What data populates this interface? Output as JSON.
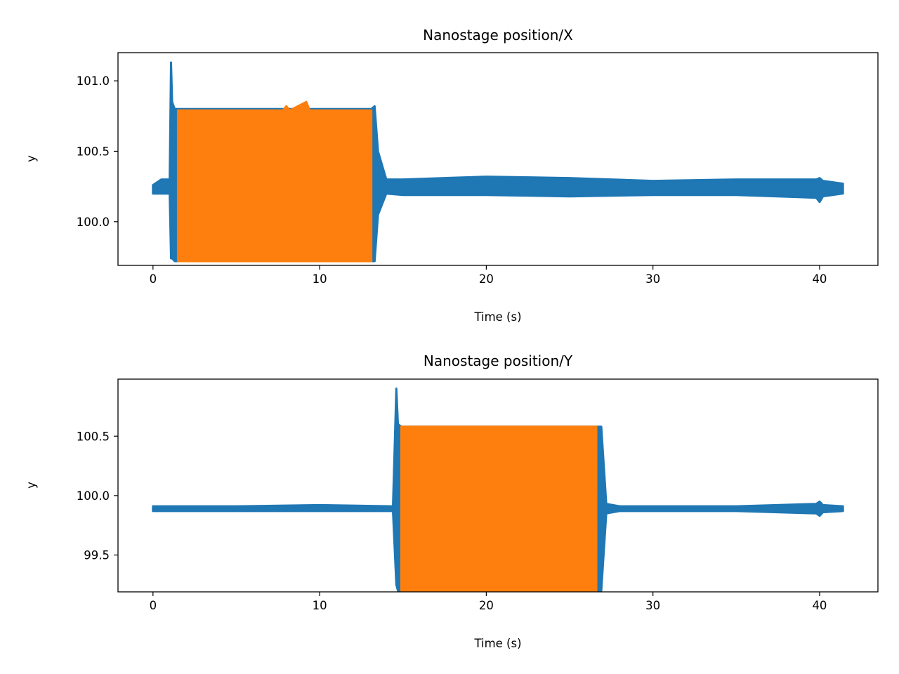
{
  "chart_data": [
    {
      "type": "line",
      "title": "Nanostage position/X",
      "xlabel": "Time (s)",
      "ylabel": "y",
      "xlim": [
        -2.1,
        43.5
      ],
      "ylim": [
        99.69,
        101.2
      ],
      "xticks": [
        0,
        10,
        20,
        30,
        40
      ],
      "xtick_labels": [
        "0",
        "10",
        "20",
        "30",
        "40"
      ],
      "yticks": [
        100.0,
        100.5,
        101.0
      ],
      "ytick_labels": [
        "100.0",
        "100.5",
        "101.0"
      ],
      "grid": false,
      "colors": {
        "series_1": "#1f77b4",
        "series_2": "#ff7f0e"
      },
      "series": [
        {
          "color": "#1f77b4",
          "x": [
            0,
            0.5,
            1.0,
            1.08,
            1.15,
            1.3,
            1.5,
            13.1,
            13.3,
            13.5,
            14.0,
            15,
            20,
            25,
            30,
            35,
            39.8,
            40.0,
            40.2,
            41.4
          ],
          "y_min": [
            100.2,
            100.2,
            100.2,
            99.74,
            99.74,
            99.72,
            99.72,
            99.72,
            99.72,
            100.05,
            100.2,
            100.19,
            100.19,
            100.18,
            100.19,
            100.19,
            100.17,
            100.14,
            100.18,
            100.2
          ],
          "y_max": [
            100.26,
            100.3,
            100.3,
            101.13,
            100.85,
            100.8,
            100.8,
            100.8,
            100.82,
            100.5,
            100.3,
            100.3,
            100.32,
            100.31,
            100.29,
            100.3,
            100.3,
            100.31,
            100.29,
            100.27
          ]
        },
        {
          "color": "#ff7f0e",
          "x": [
            1.5,
            3,
            7.8,
            8,
            8.2,
            9.2,
            9.4,
            13.1
          ],
          "y_min": [
            99.72,
            99.72,
            99.72,
            99.72,
            99.72,
            99.72,
            99.72,
            99.72
          ],
          "y_max": [
            100.79,
            100.79,
            100.79,
            100.82,
            100.79,
            100.85,
            100.79,
            100.79
          ]
        }
      ]
    },
    {
      "type": "line",
      "title": "Nanostage position/Y",
      "xlabel": "Time (s)",
      "ylabel": "y",
      "xlim": [
        -2.1,
        43.5
      ],
      "ylim": [
        99.19,
        100.98
      ],
      "xticks": [
        0,
        10,
        20,
        30,
        40
      ],
      "xtick_labels": [
        "0",
        "10",
        "20",
        "30",
        "40"
      ],
      "yticks": [
        99.5,
        100.0,
        100.5
      ],
      "ytick_labels": [
        "99.5",
        "100.0",
        "100.5"
      ],
      "grid": false,
      "colors": {
        "series_1": "#1f77b4",
        "series_2": "#ff7f0e"
      },
      "series": [
        {
          "color": "#1f77b4",
          "x": [
            0,
            5,
            10,
            14.4,
            14.6,
            14.7,
            14.9,
            26.7,
            26.9,
            27.2,
            28,
            35,
            39.8,
            40.0,
            40.2,
            41.4
          ],
          "y_min": [
            99.87,
            99.87,
            99.87,
            99.87,
            99.25,
            99.2,
            99.2,
            99.2,
            99.2,
            99.85,
            99.87,
            99.87,
            99.85,
            99.83,
            99.86,
            99.87
          ],
          "y_max": [
            99.91,
            99.91,
            99.92,
            99.91,
            100.9,
            100.6,
            100.58,
            100.58,
            100.58,
            99.93,
            99.91,
            99.91,
            99.93,
            99.95,
            99.92,
            99.91
          ]
        },
        {
          "color": "#ff7f0e",
          "x": [
            14.9,
            20,
            26.6
          ],
          "y_min": [
            99.2,
            99.2,
            99.2
          ],
          "y_max": [
            100.58,
            100.58,
            100.58
          ]
        }
      ]
    }
  ]
}
